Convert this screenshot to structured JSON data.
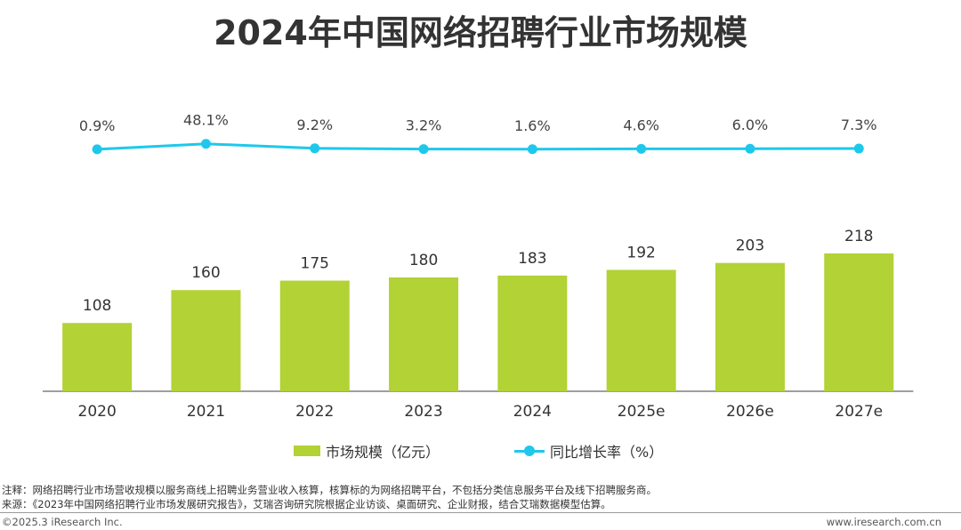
{
  "title": "2024年中国网络招聘行业市场规模",
  "chart_data": {
    "type": "bar",
    "categories": [
      "2020",
      "2021",
      "2022",
      "2023",
      "2024",
      "2025e",
      "2026e",
      "2027e"
    ],
    "series": [
      {
        "name": "市场规模（亿元）",
        "type": "bar",
        "values": [
          108,
          160,
          175,
          180,
          183,
          192,
          203,
          218
        ]
      },
      {
        "name": "同比增长率（%）",
        "type": "line",
        "values": [
          0.9,
          48.1,
          9.2,
          3.2,
          1.6,
          4.6,
          6.0,
          7.3
        ],
        "labels": [
          "0.9%",
          "48.1%",
          "9.2%",
          "3.2%",
          "1.6%",
          "4.6%",
          "6.0%",
          "7.3%"
        ]
      }
    ],
    "colors": {
      "bar": "#b2d235",
      "line": "#1ec8ec"
    },
    "legend_position": "bottom",
    "grid": false
  },
  "footnote": {
    "note": "注释：网络招聘行业市场营收规模以服务商线上招聘业务营业收入核算，核算标的为网络招聘平台，不包括分类信息服务平台及线下招聘服务商。",
    "source": "来源：《2023年中国网络招聘行业市场发展研究报告》，艾瑞咨询研究院根据企业访谈、桌面研究、企业财报，结合艾瑞数据模型估算。"
  },
  "footer": {
    "copyright": "©2025.3 iResearch Inc.",
    "website": "www.iresearch.com.cn"
  }
}
